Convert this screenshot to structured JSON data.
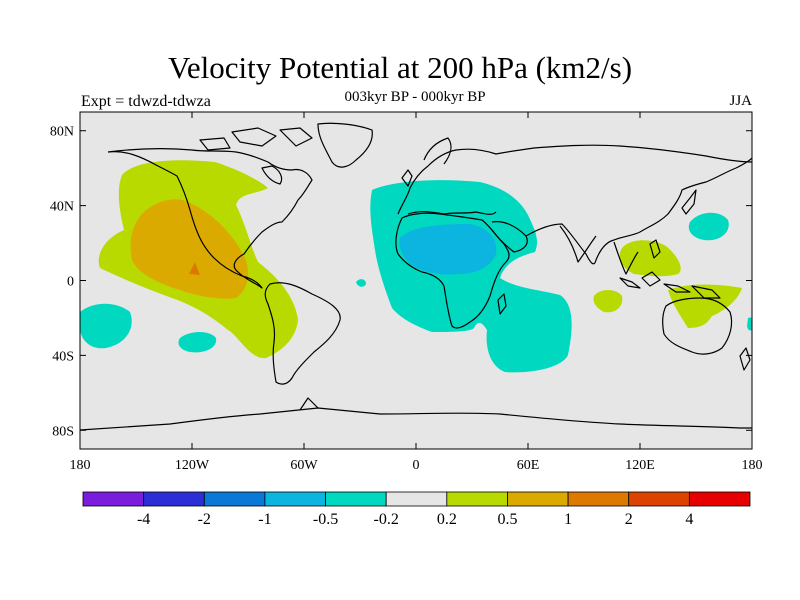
{
  "title": "Velocity Potential at 200 hPa (km2/s)",
  "subtitle": "003kyr BP - 000kyr BP",
  "left_label": "Expt = tdwzd-tdwza",
  "right_label": "JJA",
  "map": {
    "projection": "cylindrical-equidistant",
    "background_color": "#e6e6e6",
    "coastline_color": "#000000",
    "lon_range": [
      -180,
      180
    ],
    "lat_range": [
      -90,
      90
    ],
    "lon_ticks": [
      {
        "lon": -180,
        "label": "180"
      },
      {
        "lon": -120,
        "label": "120W"
      },
      {
        "lon": -60,
        "label": "60W"
      },
      {
        "lon": 0,
        "label": "0"
      },
      {
        "lon": 60,
        "label": "60E"
      },
      {
        "lon": 120,
        "label": "120E"
      },
      {
        "lon": 180,
        "label": "180"
      }
    ],
    "lat_ticks": [
      {
        "lat": 80,
        "label": "80N"
      },
      {
        "lat": 40,
        "label": "40N"
      },
      {
        "lat": 0,
        "label": "0"
      },
      {
        "lat": -40,
        "label": "40S"
      },
      {
        "lat": -80,
        "label": "80S"
      }
    ]
  },
  "colorbar": {
    "colors": [
      "#7b1ddc",
      "#2c2fd6",
      "#0a78d6",
      "#0cb4e0",
      "#00d9bf",
      "#e6e6e6",
      "#b9da00",
      "#dbaa00",
      "#db7900",
      "#db4400",
      "#e60000"
    ],
    "labels": [
      "-4",
      "-2",
      "-1",
      "-0.5",
      "-0.2",
      "0.2",
      "0.5",
      "1",
      "2",
      "4"
    ]
  }
}
